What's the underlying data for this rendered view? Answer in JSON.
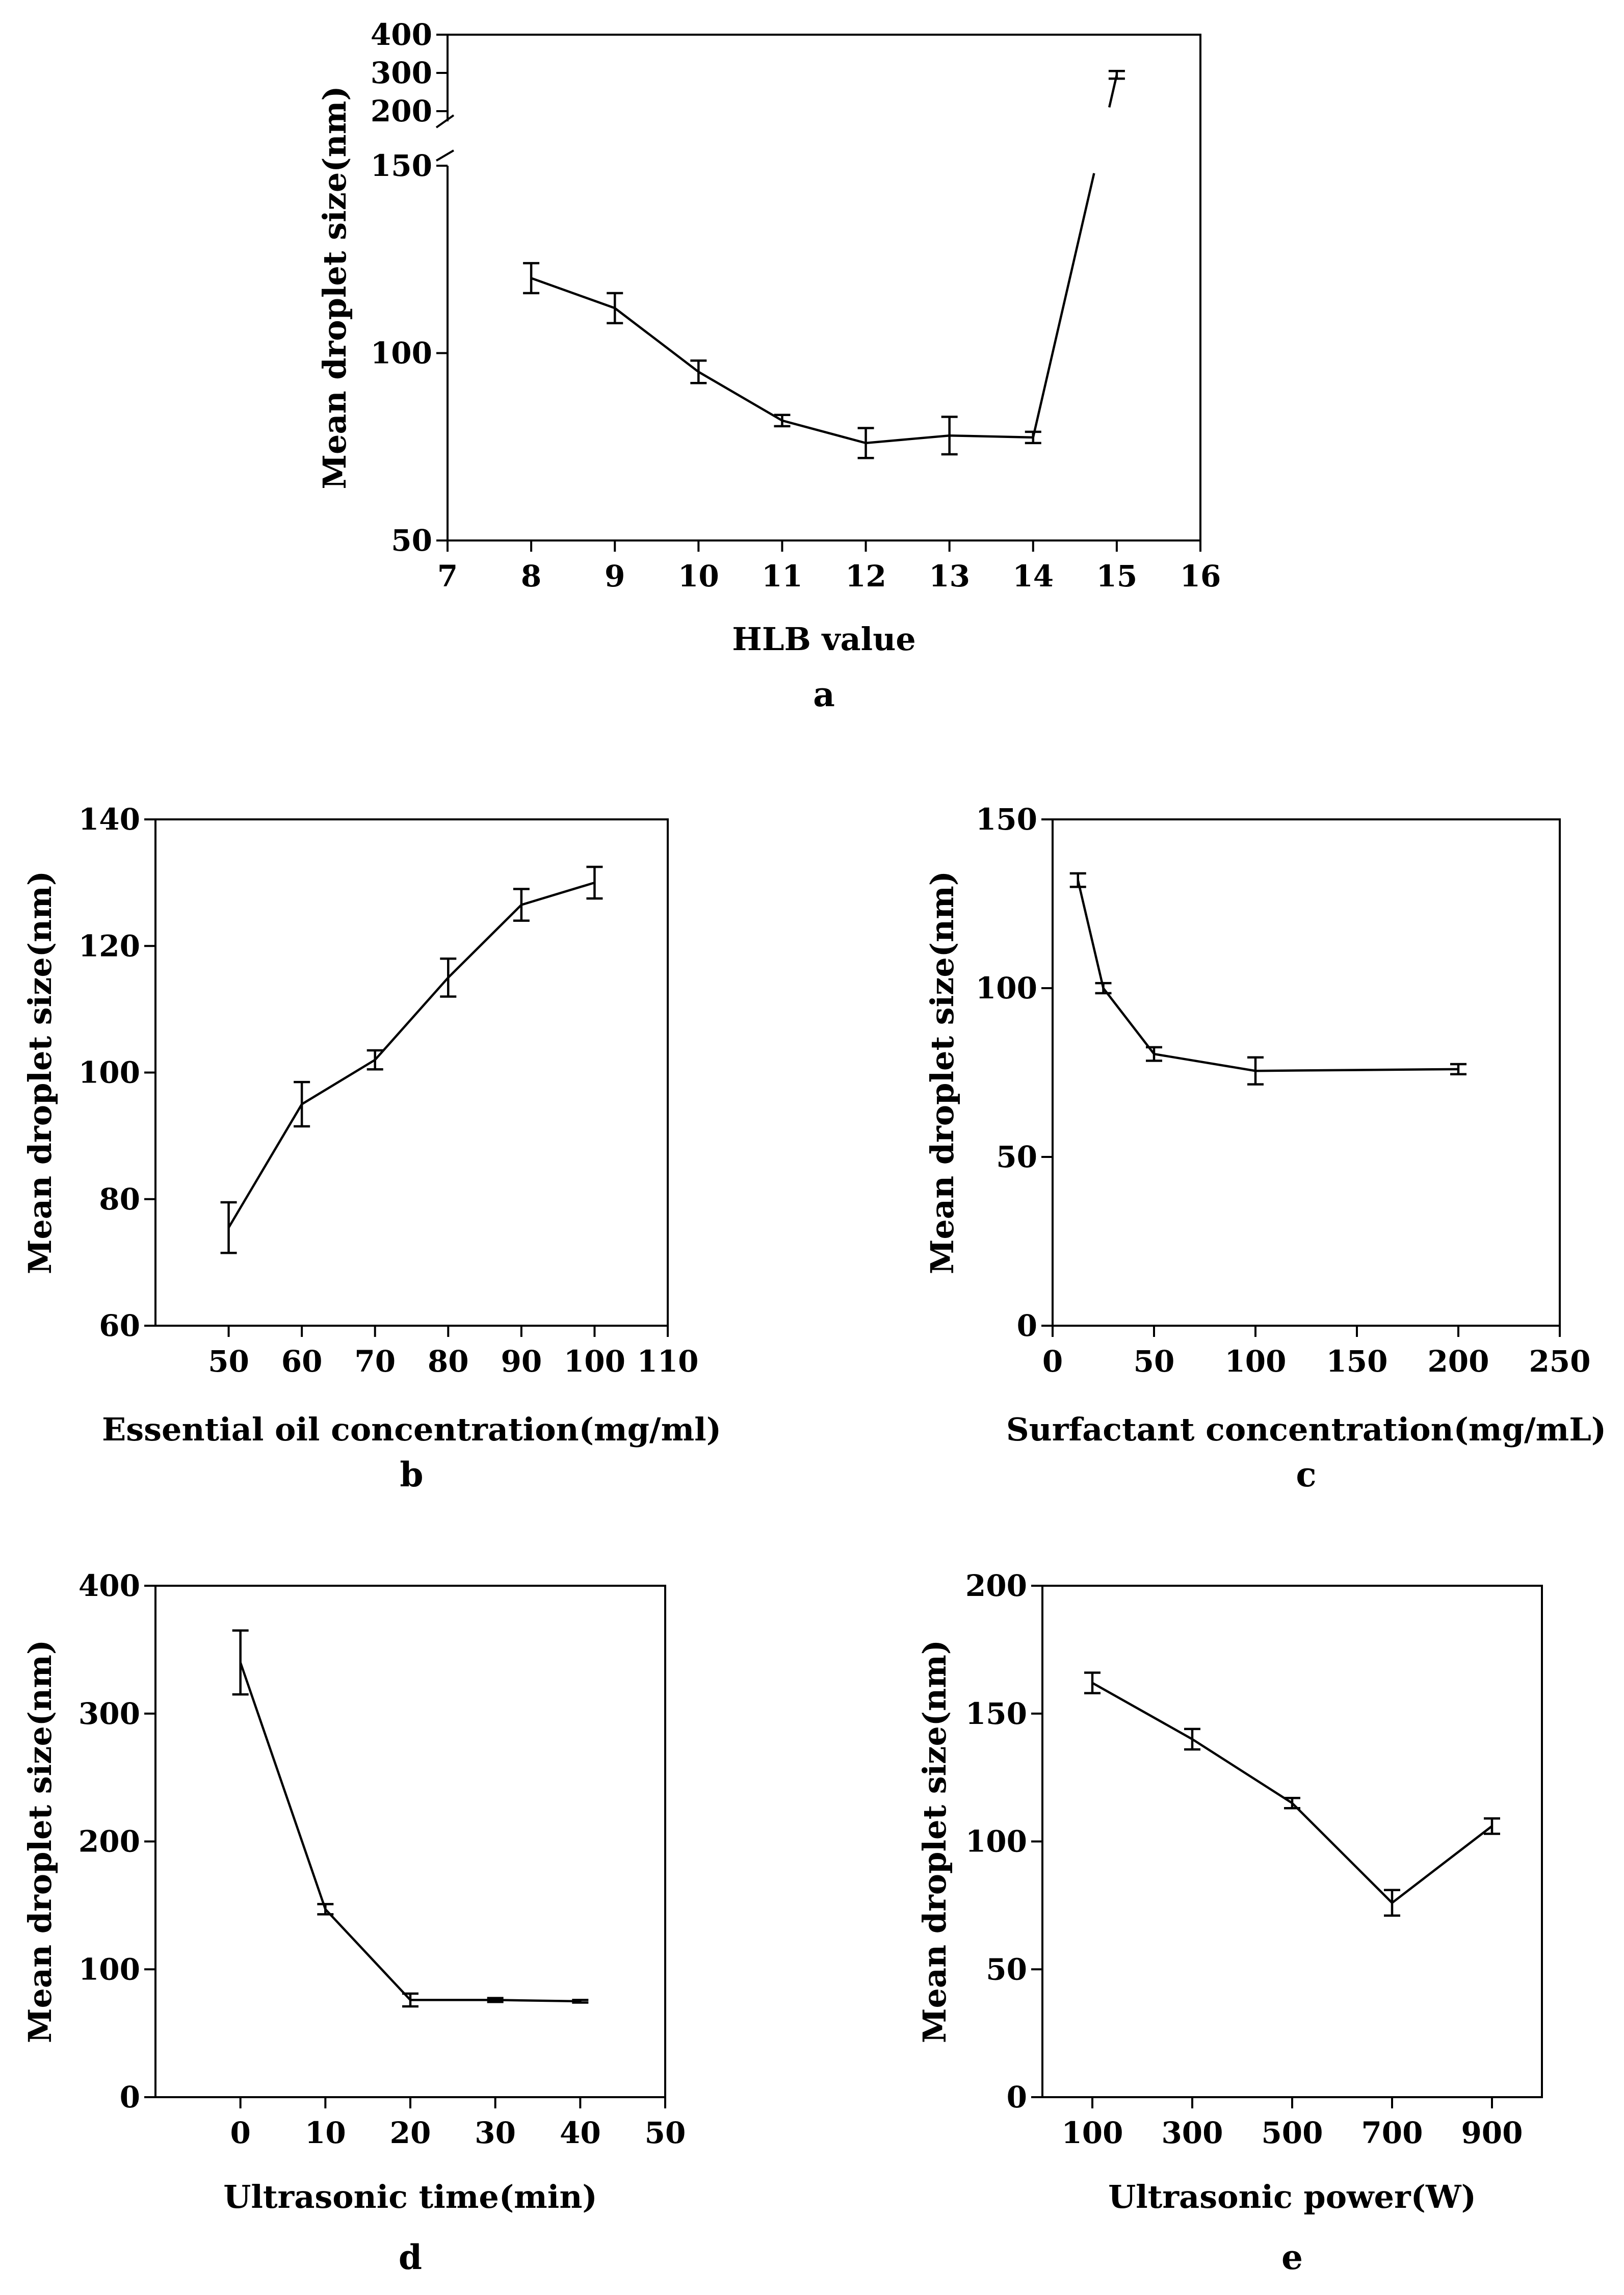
{
  "chart_data": [
    {
      "panel": "a",
      "type": "line",
      "xlabel": "HLB value",
      "ylabel": "Mean droplet size(nm)",
      "xlim": [
        7,
        16
      ],
      "xticks": [
        7,
        8,
        9,
        10,
        11,
        12,
        13,
        14,
        15,
        16
      ],
      "y_axis": "broken",
      "ylim_lower": [
        50,
        150
      ],
      "yticks_lower": [
        50,
        100,
        150
      ],
      "ylim_upper": [
        200,
        400
      ],
      "yticks_upper": [
        200,
        300,
        400
      ],
      "x": [
        8,
        9,
        10,
        11,
        12,
        13,
        14,
        15
      ],
      "y": [
        120,
        112,
        95,
        82,
        76,
        78,
        77.5,
        295
      ],
      "err": [
        4,
        4,
        3,
        1.5,
        4,
        5,
        1.5,
        10
      ]
    },
    {
      "panel": "b",
      "type": "line",
      "xlabel": "Essential oil concentration(mg/ml)",
      "ylabel": "Mean droplet size(nm)",
      "xlim": [
        40,
        110
      ],
      "xticks": [
        50,
        60,
        70,
        80,
        90,
        100,
        110
      ],
      "ylim": [
        60,
        140
      ],
      "yticks": [
        60,
        80,
        100,
        120,
        140
      ],
      "x": [
        50,
        60,
        70,
        80,
        90,
        100
      ],
      "y": [
        75.5,
        95,
        102,
        115,
        126.5,
        130
      ],
      "err": [
        4,
        3.5,
        1.5,
        3,
        2.5,
        2.5
      ]
    },
    {
      "panel": "c",
      "type": "line",
      "xlabel": "Surfactant concentration(mg/mL)",
      "ylabel": "Mean droplet size(nm)",
      "xlim": [
        0,
        250
      ],
      "xticks": [
        0,
        50,
        100,
        150,
        200,
        250
      ],
      "ylim": [
        0,
        150
      ],
      "yticks": [
        0,
        50,
        100,
        150
      ],
      "x": [
        12.5,
        25,
        50,
        100,
        200
      ],
      "y": [
        132,
        100,
        80.5,
        75.5,
        76
      ],
      "err": [
        2,
        1.5,
        2,
        4,
        1.5
      ]
    },
    {
      "panel": "d",
      "type": "line",
      "xlabel": "Ultrasonic time(min)",
      "ylabel": "Mean droplet size(nm)",
      "xlim": [
        -10,
        50
      ],
      "xticks": [
        0,
        10,
        20,
        30,
        40,
        50
      ],
      "ylim": [
        0,
        400
      ],
      "yticks": [
        0,
        100,
        200,
        300,
        400
      ],
      "x": [
        0,
        10,
        20,
        30,
        40
      ],
      "y": [
        340,
        147,
        76,
        76,
        75
      ],
      "err": [
        25,
        4,
        5,
        1.5,
        1
      ]
    },
    {
      "panel": "e",
      "type": "line",
      "xlabel": "Ultrasonic power(W)",
      "ylabel": "Mean droplet size(nm)",
      "xlim": [
        0,
        1000
      ],
      "xticks": [
        100,
        300,
        500,
        700,
        900
      ],
      "ylim": [
        0,
        200
      ],
      "yticks": [
        0,
        50,
        100,
        150,
        200
      ],
      "x": [
        100,
        300,
        500,
        700,
        900
      ],
      "y": [
        162,
        140,
        115,
        76,
        106
      ],
      "err": [
        4,
        4,
        2,
        5,
        3
      ]
    }
  ]
}
